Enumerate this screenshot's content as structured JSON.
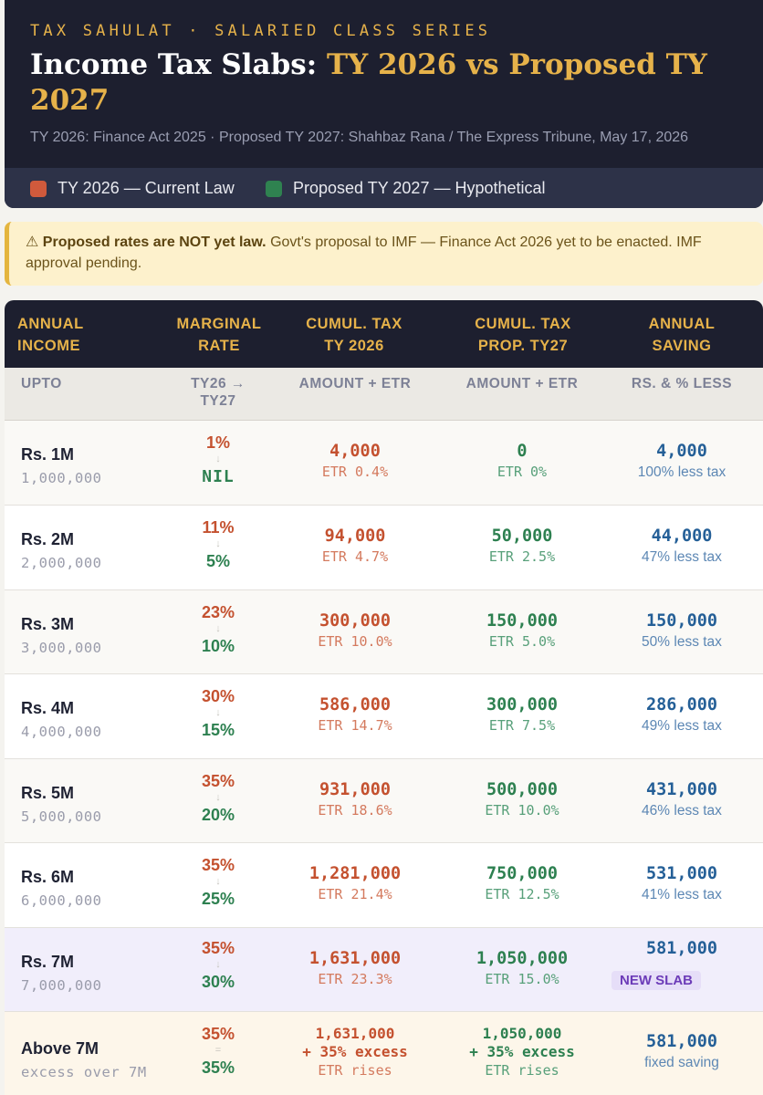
{
  "header": {
    "kicker": "TAX SAHULAT · SALARIED CLASS SERIES",
    "title_part1": "Income Tax Slabs: ",
    "title_part2": "TY 2026 vs Proposed TY 2027",
    "sources": "TY 2026: Finance Act 2025 · Proposed TY 2027: Shahbaz Rana / The Express Tribune, May 17, 2026"
  },
  "legend": [
    {
      "label": "TY 2026 — Current Law",
      "color": "#d05a3c"
    },
    {
      "label": "Proposed TY 2027 — Hypothetical",
      "color": "#2f8250"
    }
  ],
  "warning": {
    "icon": "⚠",
    "bold": "Proposed rates are NOT yet law.",
    "text": " Govt's proposal to IMF — Finance Act 2026 yet to be enacted. IMF approval pending."
  },
  "table": {
    "headers": [
      "ANNUAL INCOME",
      "MARGINAL RATE",
      "CUMUL. TAX TY 2026",
      "CUMUL. TAX PROP. TY27",
      "ANNUAL SAVING"
    ],
    "subheaders": [
      "UPTO",
      "TY26 → TY27",
      "AMOUNT + ETR",
      "AMOUNT + ETR",
      "RS. & % LESS"
    ],
    "rows": [
      {
        "income": "Rs. 1M",
        "income_full": "1,000,000",
        "rate_old": "1%",
        "rate_arrow": "↓",
        "rate_new": "NIL",
        "tax26": "4,000",
        "etr26": "ETR 0.4%",
        "tax27": "0",
        "etr27": "ETR 0%",
        "saving": "4,000",
        "less": "100% less tax"
      },
      {
        "income": "Rs. 2M",
        "income_full": "2,000,000",
        "rate_old": "11%",
        "rate_arrow": "↓",
        "rate_new": "5%",
        "tax26": "94,000",
        "etr26": "ETR 4.7%",
        "tax27": "50,000",
        "etr27": "ETR 2.5%",
        "saving": "44,000",
        "less": "47% less tax"
      },
      {
        "income": "Rs. 3M",
        "income_full": "3,000,000",
        "rate_old": "23%",
        "rate_arrow": "↓",
        "rate_new": "10%",
        "tax26": "300,000",
        "etr26": "ETR 10.0%",
        "tax27": "150,000",
        "etr27": "ETR 5.0%",
        "saving": "150,000",
        "less": "50% less tax"
      },
      {
        "income": "Rs. 4M",
        "income_full": "4,000,000",
        "rate_old": "30%",
        "rate_arrow": "↓",
        "rate_new": "15%",
        "tax26": "586,000",
        "etr26": "ETR 14.7%",
        "tax27": "300,000",
        "etr27": "ETR 7.5%",
        "saving": "286,000",
        "less": "49% less tax"
      },
      {
        "income": "Rs. 5M",
        "income_full": "5,000,000",
        "rate_old": "35%",
        "rate_arrow": "↓",
        "rate_new": "20%",
        "tax26": "931,000",
        "etr26": "ETR 18.6%",
        "tax27": "500,000",
        "etr27": "ETR 10.0%",
        "saving": "431,000",
        "less": "46% less tax"
      },
      {
        "income": "Rs. 6M",
        "income_full": "6,000,000",
        "rate_old": "35%",
        "rate_arrow": "↓",
        "rate_new": "25%",
        "tax26": "1,281,000",
        "etr26": "ETR 21.4%",
        "tax27": "750,000",
        "etr27": "ETR 12.5%",
        "saving": "531,000",
        "less": "41% less tax"
      },
      {
        "income": "Rs. 7M",
        "income_full": "7,000,000",
        "rate_old": "35%",
        "rate_arrow": "↓",
        "rate_new": "30%",
        "tax26": "1,631,000",
        "etr26": "ETR 23.3%",
        "tax27": "1,050,000",
        "etr27": "ETR 15.0%",
        "saving": "581,000",
        "badge": "NEW SLAB"
      },
      {
        "income": "Above 7M",
        "income_full": "excess over 7M",
        "rate_old": "35%",
        "rate_arrow": "=",
        "rate_new": "35%",
        "tax26": "1,631,000",
        "excess26": "+ 35% excess",
        "rises26": "ETR rises",
        "tax27": "1,050,000",
        "excess27": "+ 35% excess",
        "rises27": "ETR rises",
        "saving": "581,000",
        "less": "fixed saving"
      }
    ]
  }
}
